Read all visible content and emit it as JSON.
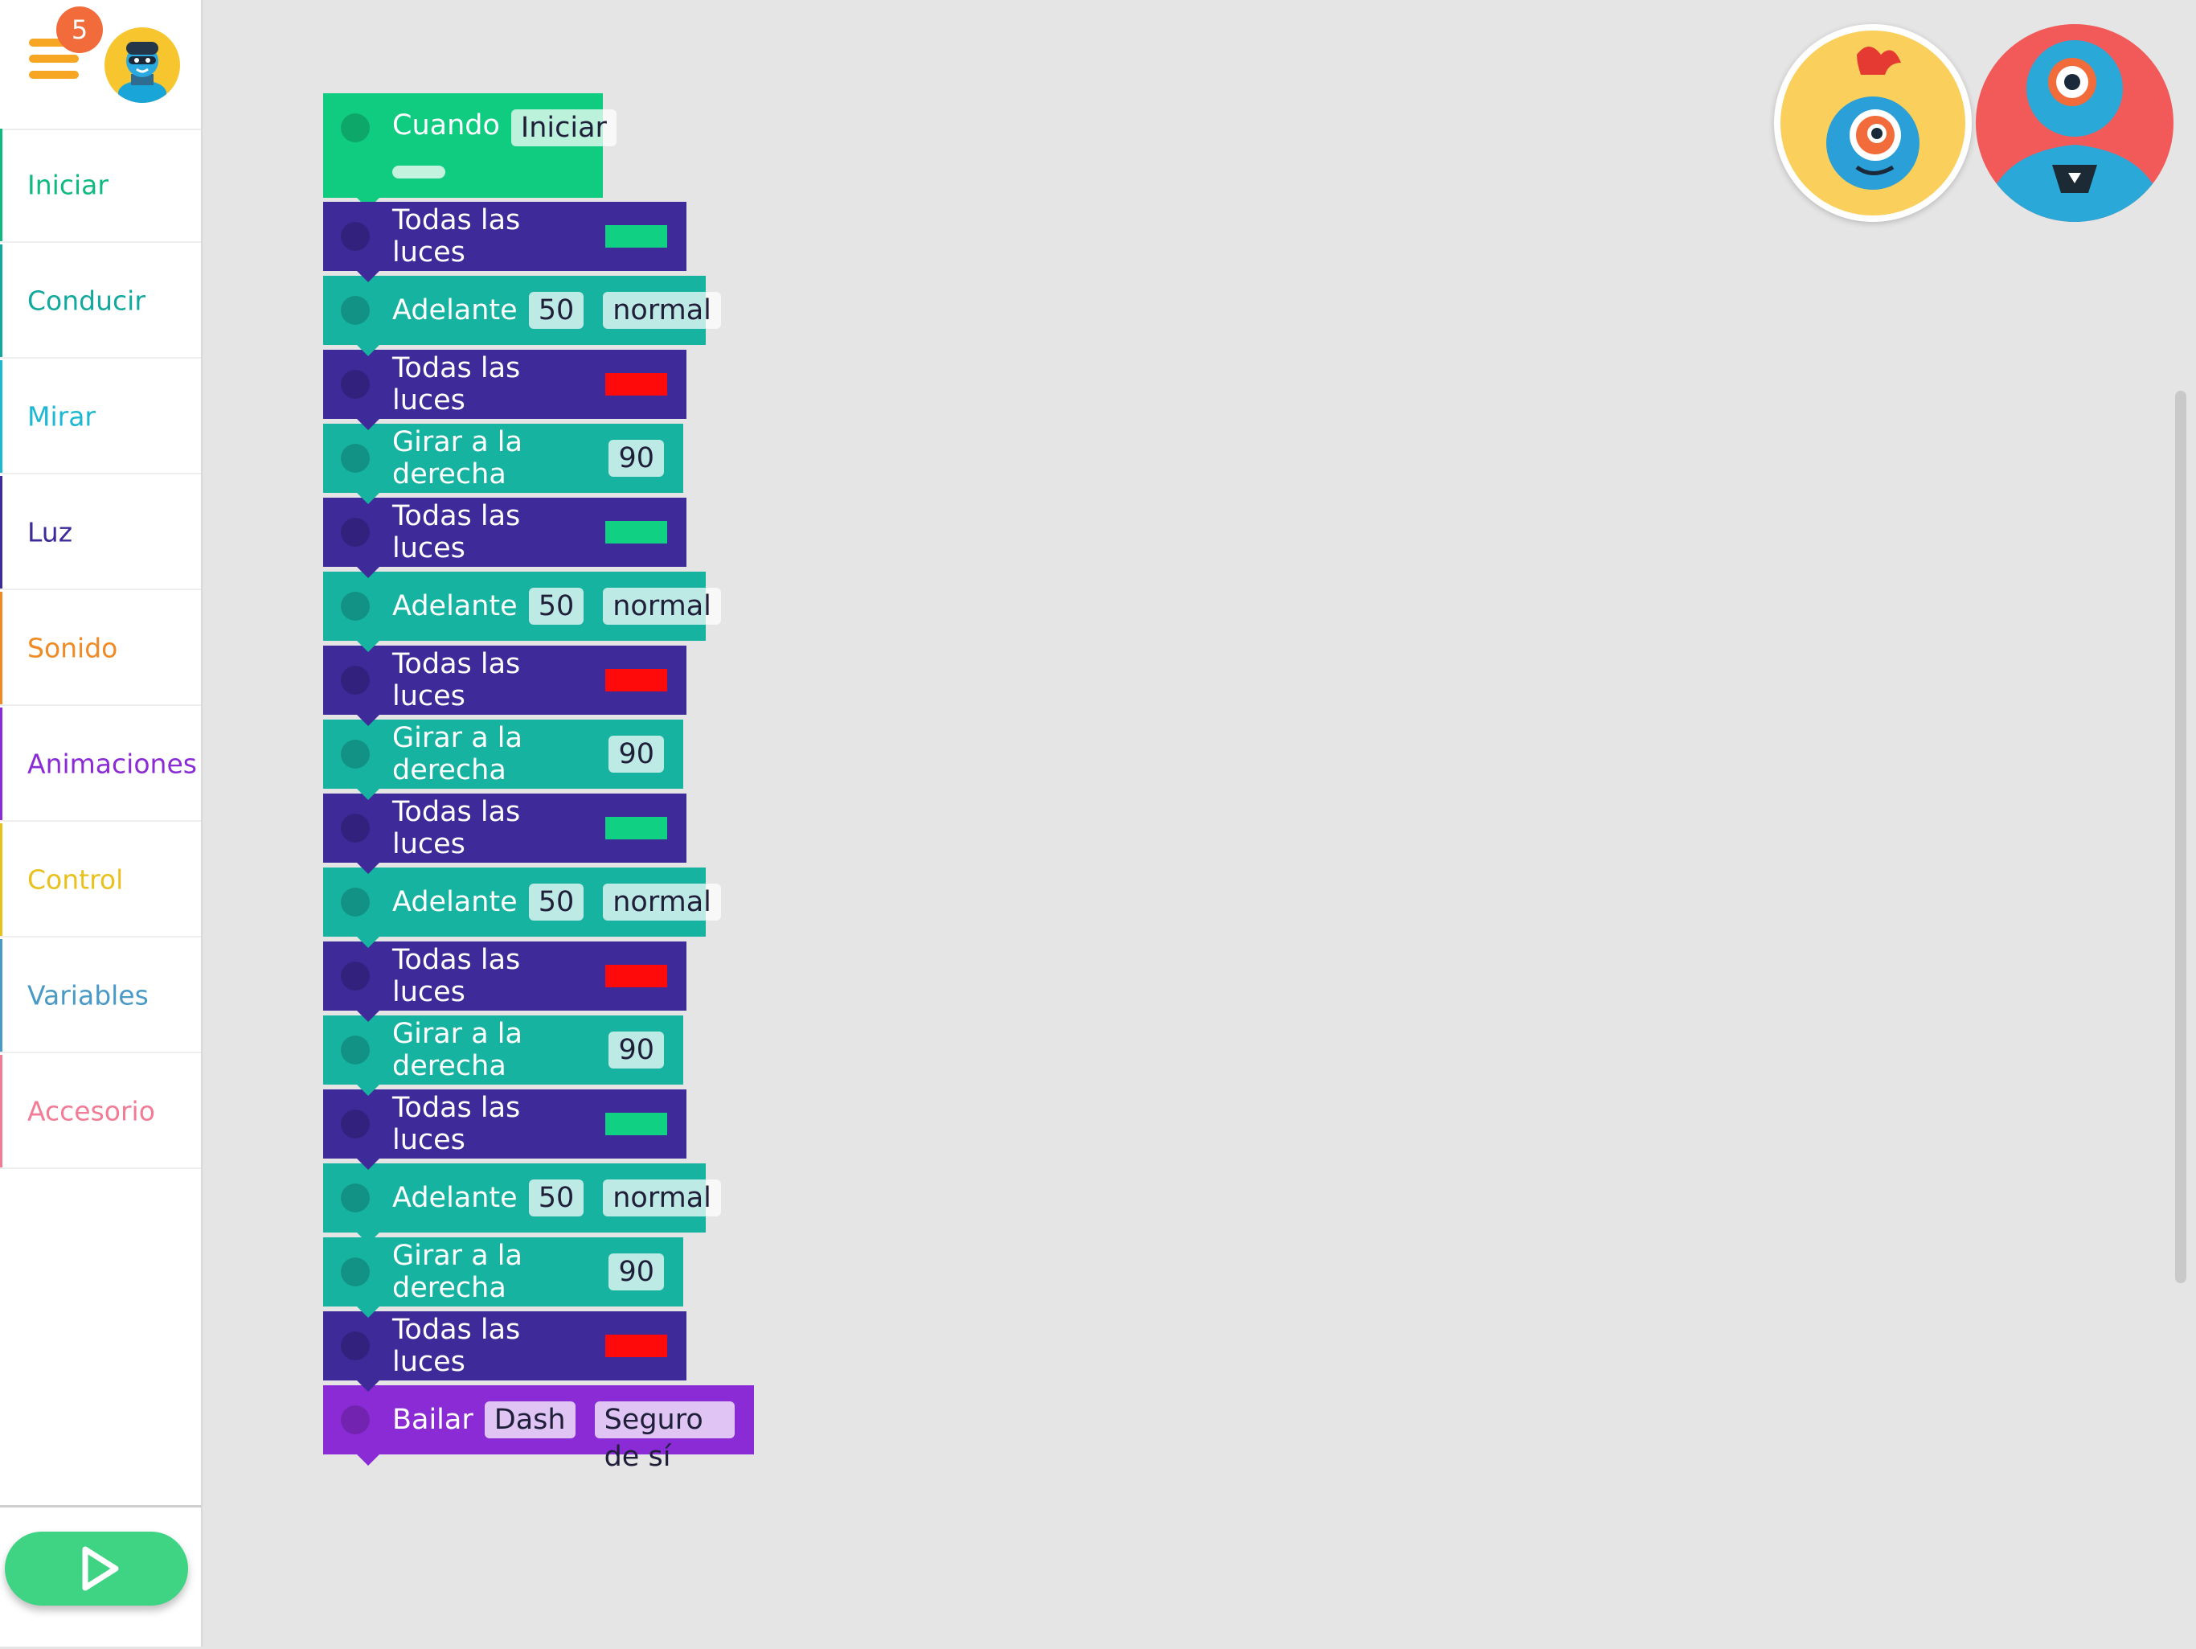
{
  "header": {
    "notification_count": "5"
  },
  "sidebar": {
    "categories": [
      {
        "label": "Iniciar",
        "color": "#10b981"
      },
      {
        "label": "Conducir",
        "color": "#13a89e"
      },
      {
        "label": "Mirar",
        "color": "#1db8d3"
      },
      {
        "label": "Luz",
        "color": "#3e2a99"
      },
      {
        "label": "Sonido",
        "color": "#f08a24"
      },
      {
        "label": "Animaciones",
        "color": "#8b2bd6"
      },
      {
        "label": "Control",
        "color": "#e9c11d"
      },
      {
        "label": "Variables",
        "color": "#4a9ac7"
      },
      {
        "label": "Accesorio",
        "color": "#f27c96"
      }
    ]
  },
  "colors": {
    "green_light": "#0fd083",
    "red_light": "#ff0a0a"
  },
  "program": {
    "start": {
      "label": "Cuando",
      "event": "Iniciar"
    },
    "blocks": [
      {
        "type": "light",
        "label": "Todas las luces",
        "color": "#0fd083"
      },
      {
        "type": "drive",
        "label": "Adelante",
        "value": "50",
        "speed": "normal"
      },
      {
        "type": "light",
        "label": "Todas las luces",
        "color": "#ff0a0a"
      },
      {
        "type": "turn",
        "label": "Girar a la derecha",
        "value": "90"
      },
      {
        "type": "light",
        "label": "Todas las luces",
        "color": "#0fd083"
      },
      {
        "type": "drive",
        "label": "Adelante",
        "value": "50",
        "speed": "normal"
      },
      {
        "type": "light",
        "label": "Todas las luces",
        "color": "#ff0a0a"
      },
      {
        "type": "turn",
        "label": "Girar a la derecha",
        "value": "90"
      },
      {
        "type": "light",
        "label": "Todas las luces",
        "color": "#0fd083"
      },
      {
        "type": "drive",
        "label": "Adelante",
        "value": "50",
        "speed": "normal"
      },
      {
        "type": "light",
        "label": "Todas las luces",
        "color": "#ff0a0a"
      },
      {
        "type": "turn",
        "label": "Girar a la derecha",
        "value": "90"
      },
      {
        "type": "light",
        "label": "Todas las luces",
        "color": "#0fd083"
      },
      {
        "type": "drive",
        "label": "Adelante",
        "value": "50",
        "speed": "normal"
      },
      {
        "type": "turn",
        "label": "Girar a la derecha",
        "value": "90"
      },
      {
        "type": "light",
        "label": "Todas las luces",
        "color": "#ff0a0a"
      },
      {
        "type": "dance",
        "label": "Bailar",
        "robot": "Dash",
        "style": "Seguro de sí"
      }
    ]
  }
}
